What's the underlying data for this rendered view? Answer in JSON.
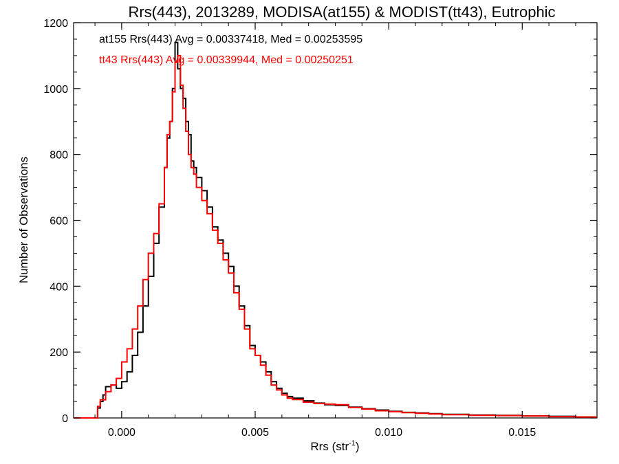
{
  "chart_data": {
    "type": "line",
    "title": "Rrs(443), 2013289, MODISA(at155) & MODIST(tt43), Eutrophic",
    "xlabel": "Rrs (str",
    "xlabel_sup": "-1",
    "xlabel_close": ")",
    "ylabel": "Number of Observations",
    "xlim": [
      -0.0018,
      0.0178
    ],
    "ylim": [
      0,
      1200
    ],
    "xticks": [
      0.0,
      0.005,
      0.01,
      0.015
    ],
    "xtick_labels": [
      "0.000",
      "0.005",
      "0.010",
      "0.015"
    ],
    "yticks": [
      0,
      200,
      400,
      600,
      800,
      1000,
      1200
    ],
    "ytick_labels": [
      "0",
      "200",
      "400",
      "600",
      "800",
      "1000",
      "1200"
    ],
    "grid": false,
    "legend_position": "top-left",
    "series": [
      {
        "label": "at155 Rrs(443) Avg = 0.00337418, Med = 0.00253595",
        "color": "#000000",
        "points": [
          [
            -0.0018,
            0
          ],
          [
            -0.001,
            0
          ],
          [
            -0.0009,
            30
          ],
          [
            -0.0008,
            50
          ],
          [
            -0.0007,
            70
          ],
          [
            -0.0006,
            95
          ],
          [
            -0.0004,
            100
          ],
          [
            -0.0002,
            90
          ],
          [
            0.0,
            110
          ],
          [
            0.0002,
            140
          ],
          [
            0.0004,
            190
          ],
          [
            0.0006,
            260
          ],
          [
            0.0008,
            340
          ],
          [
            0.001,
            430
          ],
          [
            0.0012,
            530
          ],
          [
            0.0014,
            640
          ],
          [
            0.0016,
            760
          ],
          [
            0.0017,
            850
          ],
          [
            0.0018,
            900
          ],
          [
            0.0019,
            1000
          ],
          [
            0.002,
            1140
          ],
          [
            0.0021,
            1060
          ],
          [
            0.0022,
            1000
          ],
          [
            0.0023,
            970
          ],
          [
            0.0024,
            900
          ],
          [
            0.0025,
            860
          ],
          [
            0.0026,
            780
          ],
          [
            0.0027,
            760
          ],
          [
            0.0028,
            730
          ],
          [
            0.003,
            690
          ],
          [
            0.0032,
            640
          ],
          [
            0.0034,
            580
          ],
          [
            0.0036,
            540
          ],
          [
            0.0038,
            500
          ],
          [
            0.004,
            460
          ],
          [
            0.0042,
            400
          ],
          [
            0.0044,
            340
          ],
          [
            0.0046,
            280
          ],
          [
            0.0048,
            220
          ],
          [
            0.005,
            190
          ],
          [
            0.0052,
            170
          ],
          [
            0.0054,
            140
          ],
          [
            0.0056,
            110
          ],
          [
            0.0058,
            90
          ],
          [
            0.006,
            75
          ],
          [
            0.0062,
            65
          ],
          [
            0.0064,
            60
          ],
          [
            0.0068,
            52
          ],
          [
            0.0072,
            45
          ],
          [
            0.0076,
            40
          ],
          [
            0.008,
            38
          ],
          [
            0.0085,
            33
          ],
          [
            0.009,
            28
          ],
          [
            0.0095,
            24
          ],
          [
            0.01,
            20
          ],
          [
            0.0105,
            17
          ],
          [
            0.011,
            15
          ],
          [
            0.0115,
            13
          ],
          [
            0.012,
            11
          ],
          [
            0.013,
            9
          ],
          [
            0.014,
            8
          ],
          [
            0.015,
            6
          ],
          [
            0.016,
            5
          ],
          [
            0.017,
            3
          ],
          [
            0.0178,
            3
          ]
        ]
      },
      {
        "label": "tt43 Rrs(443) Avg = 0.00339944, Med = 0.00250251",
        "color": "#ff0000",
        "points": [
          [
            -0.0018,
            0
          ],
          [
            -0.001,
            0
          ],
          [
            -0.0009,
            35
          ],
          [
            -0.0008,
            55
          ],
          [
            -0.0006,
            80
          ],
          [
            -0.0004,
            100
          ],
          [
            -0.0002,
            120
          ],
          [
            0.0,
            170
          ],
          [
            0.0002,
            210
          ],
          [
            0.0004,
            270
          ],
          [
            0.0006,
            340
          ],
          [
            0.0008,
            420
          ],
          [
            0.001,
            500
          ],
          [
            0.0012,
            560
          ],
          [
            0.0014,
            650
          ],
          [
            0.0016,
            760
          ],
          [
            0.0017,
            860
          ],
          [
            0.0018,
            900
          ],
          [
            0.0019,
            990
          ],
          [
            0.002,
            1080
          ],
          [
            0.0021,
            1100
          ],
          [
            0.0022,
            1010
          ],
          [
            0.0023,
            940
          ],
          [
            0.0024,
            870
          ],
          [
            0.0025,
            800
          ],
          [
            0.0026,
            760
          ],
          [
            0.0027,
            740
          ],
          [
            0.0028,
            700
          ],
          [
            0.003,
            660
          ],
          [
            0.0032,
            620
          ],
          [
            0.0034,
            570
          ],
          [
            0.0036,
            530
          ],
          [
            0.0038,
            480
          ],
          [
            0.004,
            440
          ],
          [
            0.0042,
            380
          ],
          [
            0.0044,
            330
          ],
          [
            0.0046,
            270
          ],
          [
            0.0048,
            210
          ],
          [
            0.005,
            190
          ],
          [
            0.0052,
            160
          ],
          [
            0.0054,
            130
          ],
          [
            0.0056,
            100
          ],
          [
            0.0058,
            85
          ],
          [
            0.006,
            70
          ],
          [
            0.0062,
            60
          ],
          [
            0.0064,
            56
          ],
          [
            0.0068,
            48
          ],
          [
            0.0072,
            44
          ],
          [
            0.0076,
            42
          ],
          [
            0.008,
            40
          ],
          [
            0.0085,
            32
          ],
          [
            0.009,
            27
          ],
          [
            0.0095,
            22
          ],
          [
            0.01,
            19
          ],
          [
            0.0105,
            16
          ],
          [
            0.011,
            14
          ],
          [
            0.0115,
            12
          ],
          [
            0.012,
            10
          ],
          [
            0.013,
            8
          ],
          [
            0.014,
            7
          ],
          [
            0.015,
            6
          ],
          [
            0.016,
            4
          ],
          [
            0.017,
            3
          ],
          [
            0.0178,
            3
          ]
        ]
      }
    ]
  }
}
